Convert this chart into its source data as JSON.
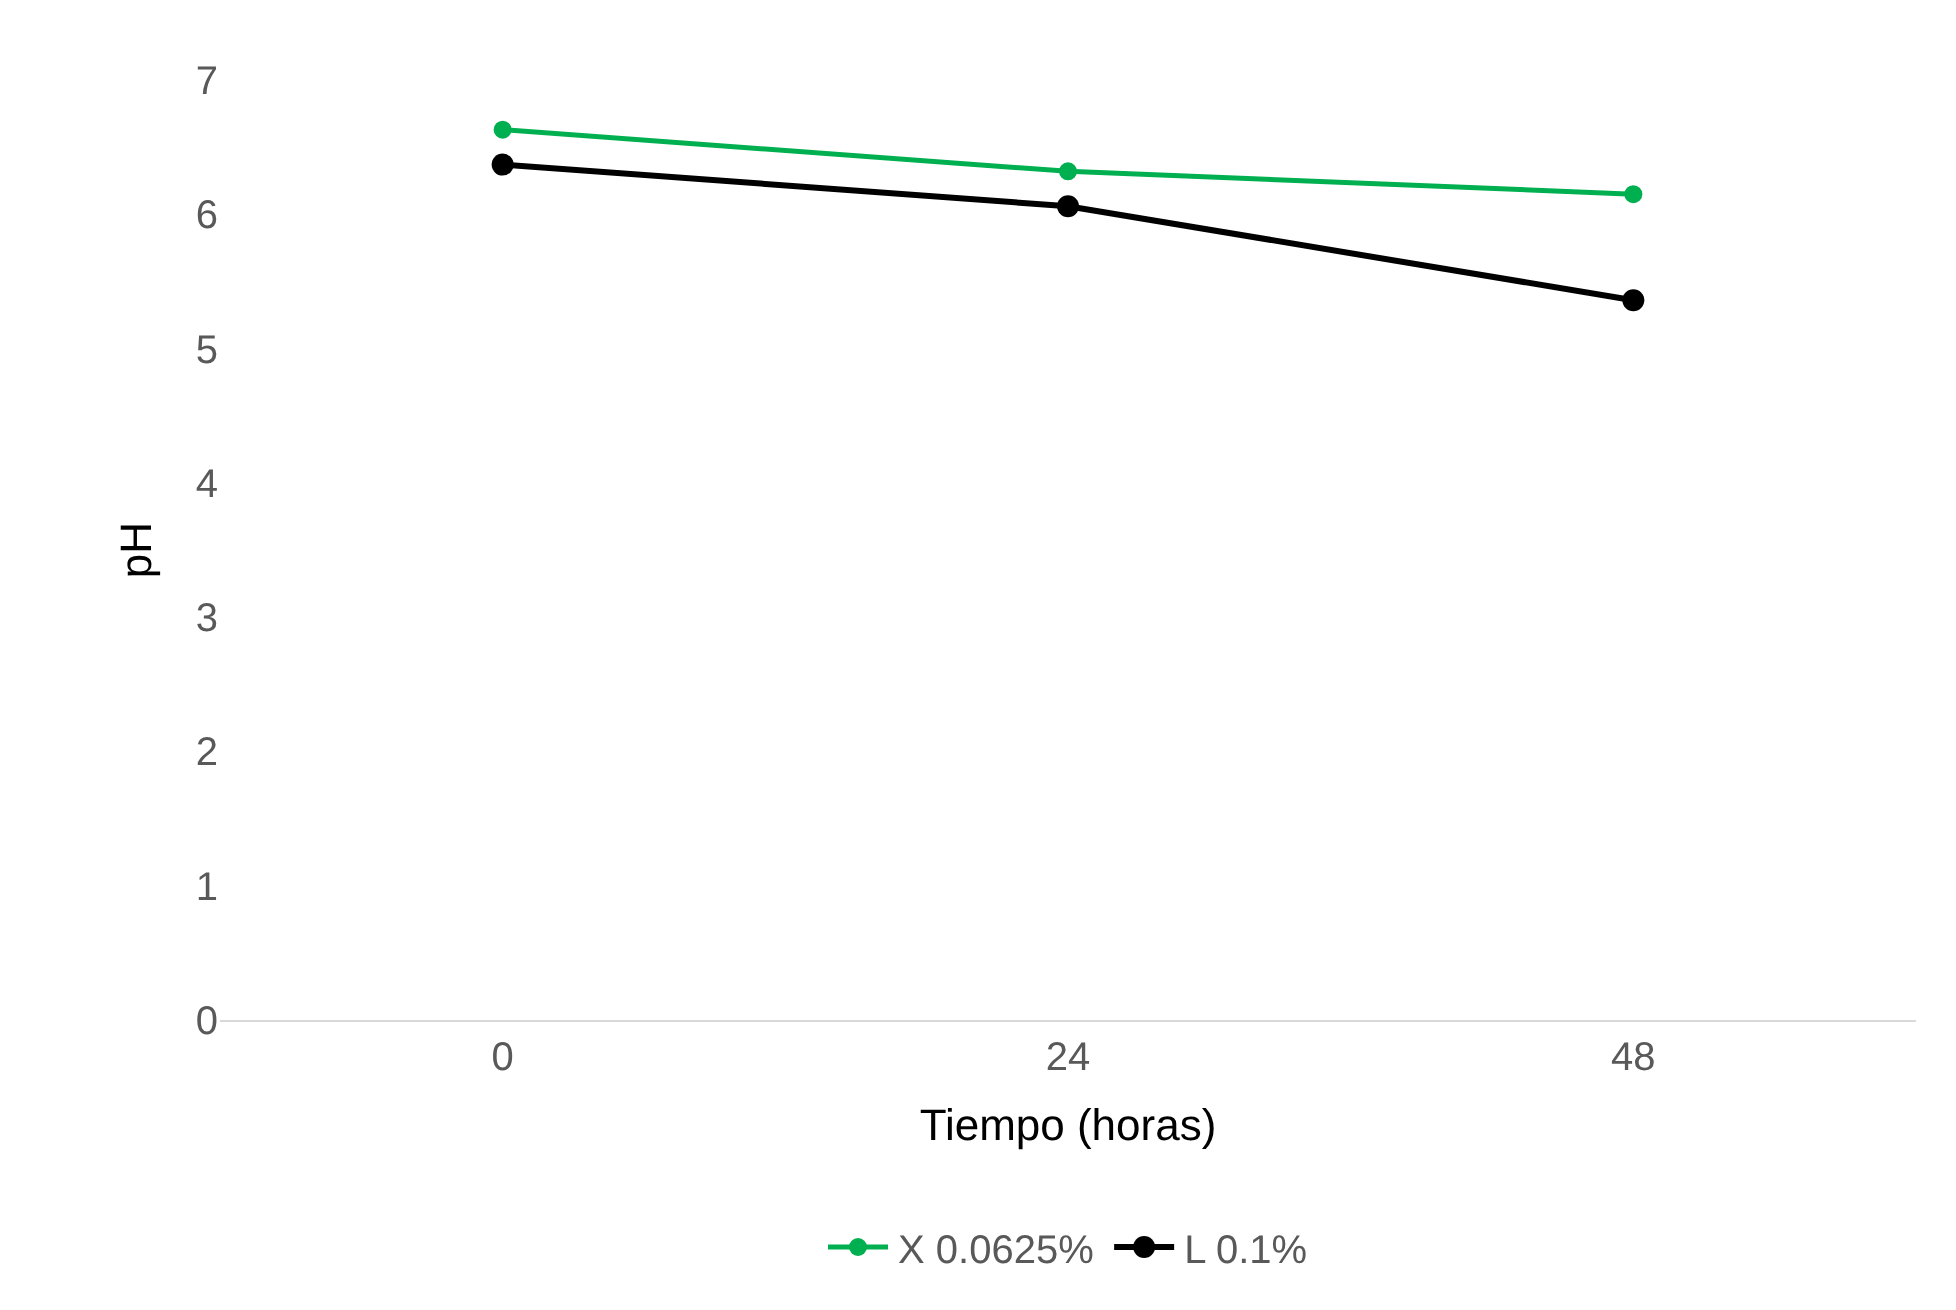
{
  "chart_data": {
    "type": "line",
    "xlabel": "Tiempo (horas)",
    "ylabel": "pH",
    "categories": [
      "0",
      "24",
      "48"
    ],
    "series": [
      {
        "name": "X 0.0625%",
        "color": "#00b050",
        "values": [
          6.63,
          6.32,
          6.15
        ]
      },
      {
        "name": "L 0.1%",
        "color": "#000000",
        "values": [
          6.37,
          6.06,
          5.36
        ]
      }
    ],
    "ylim": [
      0,
      7
    ],
    "yticks": [
      0,
      1,
      2,
      3,
      4,
      5,
      6,
      7
    ],
    "grid": false,
    "legend": "bottom",
    "marker": "circle",
    "line_style": "solid"
  }
}
